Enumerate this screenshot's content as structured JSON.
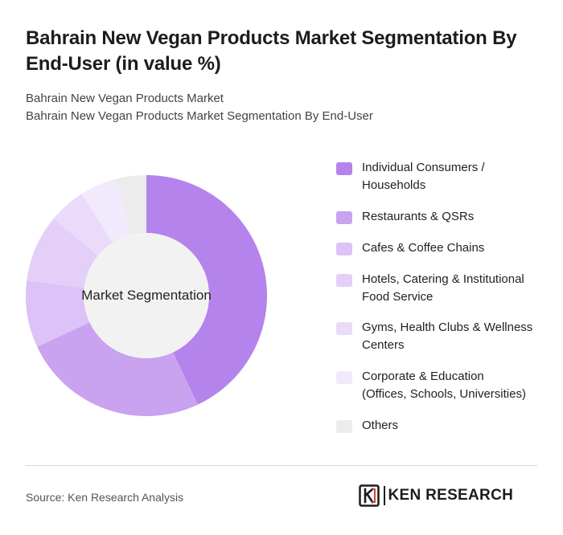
{
  "title": "Bahrain New Vegan Products Market Segmentation By End-User (in value %)",
  "subtitle_lines": [
    "Bahrain New Vegan Products Market",
    "Bahrain New Vegan Products Market Segmentation By End-User"
  ],
  "chart_data": {
    "type": "pie",
    "style": "donut",
    "center_label": "Market Segmentation",
    "categories": [
      "Individual Consumers / Households",
      "Restaurants & QSRs",
      "Cafes & Coffee Chains",
      "Hotels, Catering & Institutional Food Service",
      "Gyms, Health Clubs & Wellness Centers",
      "Corporate & Education (Offices, Schools, Universities)",
      "Others"
    ],
    "values": [
      43,
      25,
      9,
      9,
      5,
      5,
      4
    ],
    "colors": [
      "#b583ec",
      "#c9a2f0",
      "#dcc2f6",
      "#e3cff8",
      "#eadbfa",
      "#f1e9fc",
      "#ececec"
    ],
    "legend_position": "right"
  },
  "legend": {
    "items": [
      {
        "label": "Individual Consumers / Households",
        "lines": [
          "Individual Consumers /",
          "Households"
        ],
        "color": "#b583ec"
      },
      {
        "label": "Restaurants & QSRs",
        "lines": [
          "Restaurants & QSRs"
        ],
        "color": "#c9a2f0"
      },
      {
        "label": "Cafes & Coffee Chains",
        "lines": [
          "Cafes & Coffee Chains"
        ],
        "color": "#dcc2f6"
      },
      {
        "label": "Hotels, Catering & Institutional Food Service",
        "lines": [
          "Hotels, Catering & Institutional",
          "Food Service"
        ],
        "color": "#e3cff8"
      },
      {
        "label": "Gyms, Health Clubs & Wellness Centers",
        "lines": [
          "Gyms, Health Clubs & Wellness",
          "Centers"
        ],
        "color": "#eadbfa"
      },
      {
        "label": "Corporate & Education (Offices, Schools, Universities)",
        "lines": [
          "Corporate & Education",
          "(Offices, Schools, Universities)"
        ],
        "color": "#f1e9fc"
      },
      {
        "label": "Others",
        "lines": [
          "Others"
        ],
        "color": "#ececec"
      }
    ]
  },
  "footer": {
    "source": "Source: Ken Research Analysis",
    "logo_text": "KEN RESEARCH"
  }
}
